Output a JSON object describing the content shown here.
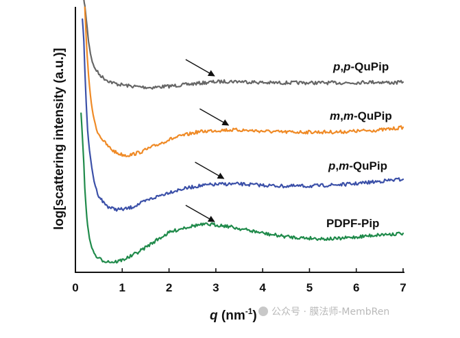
{
  "chart_data": {
    "type": "line",
    "xlabel_symbol": "q",
    "xlabel_unit_prefix": " (nm",
    "xlabel_unit_sup": "-1",
    "xlabel_unit_suffix": ")",
    "ylabel": "log[scattering intensity (a.u.)]",
    "xlim": [
      0,
      7
    ],
    "xticks": [
      "0",
      "1",
      "2",
      "3",
      "4",
      "5",
      "6",
      "7"
    ],
    "grid": false,
    "legend": "inline labels at right",
    "series": [
      {
        "name": "p,p-QuPip",
        "label_it1": "p",
        "label_mid": ",",
        "label_it2": "p",
        "label_tail": "-QuPip",
        "color": "#666666",
        "arrow_at": [
          3.0,
          115
        ],
        "x": [
          0.18,
          0.2,
          0.22,
          0.25,
          0.28,
          0.32,
          0.36,
          0.4,
          0.45,
          0.5,
          0.6,
          0.7,
          0.8,
          0.9,
          1.0,
          1.2,
          1.4,
          1.6,
          1.8,
          2.0,
          2.3,
          2.6,
          2.9,
          3.2,
          3.5,
          3.8,
          4.1,
          4.4,
          4.7,
          5.0,
          5.3,
          5.6,
          5.9,
          6.2,
          6.5,
          6.8,
          7.0
        ],
        "y": [
          0,
          8,
          20,
          40,
          60,
          78,
          90,
          98,
          103,
          108,
          114,
          118,
          121,
          123,
          124,
          126,
          127,
          128,
          127,
          126,
          124,
          122,
          120,
          119,
          119,
          120,
          121,
          121,
          121,
          121,
          121,
          121,
          121,
          120,
          120,
          121,
          120
        ]
      },
      {
        "name": "m,m-QuPip",
        "label_it1": "m",
        "label_mid": ",",
        "label_it2": "m",
        "label_tail": "-QuPip",
        "color": "#ef8a26",
        "arrow_at": [
          3.3,
          187
        ],
        "x": [
          0.2,
          0.22,
          0.25,
          0.28,
          0.32,
          0.36,
          0.4,
          0.45,
          0.5,
          0.6,
          0.7,
          0.8,
          0.9,
          1.0,
          1.1,
          1.2,
          1.4,
          1.6,
          1.8,
          2.0,
          2.3,
          2.6,
          2.9,
          3.2,
          3.5,
          3.8,
          4.1,
          4.4,
          4.7,
          5.0,
          5.3,
          5.6,
          5.9,
          6.2,
          6.5,
          6.8,
          7.0
        ],
        "y": [
          10,
          40,
          80,
          110,
          140,
          160,
          175,
          188,
          196,
          206,
          214,
          220,
          224,
          226,
          227,
          226,
          222,
          216,
          210,
          204,
          198,
          193,
          191,
          190,
          190,
          191,
          192,
          193,
          193,
          193,
          193,
          193,
          192,
          191,
          190,
          188,
          186
        ]
      },
      {
        "name": "p,m-QuPip",
        "label_it1": "p",
        "label_mid": ",",
        "label_it2": "m",
        "label_tail": "-QuPip",
        "color": "#3b50a8",
        "arrow_at": [
          3.2,
          265
        ],
        "x": [
          0.15,
          0.18,
          0.2,
          0.23,
          0.26,
          0.3,
          0.35,
          0.4,
          0.45,
          0.5,
          0.6,
          0.7,
          0.8,
          0.9,
          1.0,
          1.1,
          1.2,
          1.4,
          1.6,
          1.8,
          2.0,
          2.3,
          2.6,
          2.9,
          3.2,
          3.5,
          3.8,
          4.1,
          4.4,
          4.7,
          5.0,
          5.3,
          5.6,
          5.9,
          6.2,
          6.5,
          6.8,
          7.0
        ],
        "y": [
          28,
          60,
          100,
          150,
          190,
          220,
          245,
          265,
          278,
          286,
          296,
          302,
          305,
          306,
          306,
          305,
          303,
          297,
          291,
          286,
          281,
          276,
          272,
          270,
          269,
          269,
          270,
          271,
          272,
          272,
          272,
          271,
          270,
          269,
          267,
          265,
          263,
          262
        ]
      },
      {
        "name": "PDPF-Pip",
        "label_it1": "",
        "label_mid": "",
        "label_it2": "",
        "label_tail": "PDPF-Pip",
        "color": "#1f8a4a",
        "arrow_at": [
          3.0,
          328
        ],
        "x": [
          0.12,
          0.15,
          0.18,
          0.2,
          0.23,
          0.26,
          0.3,
          0.35,
          0.4,
          0.45,
          0.5,
          0.6,
          0.7,
          0.8,
          0.9,
          1.0,
          1.2,
          1.4,
          1.6,
          1.8,
          2.0,
          2.3,
          2.6,
          2.9,
          3.2,
          3.5,
          3.8,
          4.1,
          4.4,
          4.7,
          5.0,
          5.3,
          5.6,
          5.9,
          6.2,
          6.5,
          6.8,
          7.0
        ],
        "y": [
          165,
          200,
          240,
          275,
          305,
          330,
          348,
          362,
          370,
          375,
          378,
          381,
          382,
          383,
          382,
          380,
          374,
          366,
          357,
          348,
          340,
          333,
          329,
          328,
          330,
          334,
          338,
          342,
          345,
          347,
          348,
          349,
          349,
          347,
          345,
          343,
          342,
          341
        ]
      }
    ]
  },
  "watermark": "公众号 · 膜法师-MembRen"
}
